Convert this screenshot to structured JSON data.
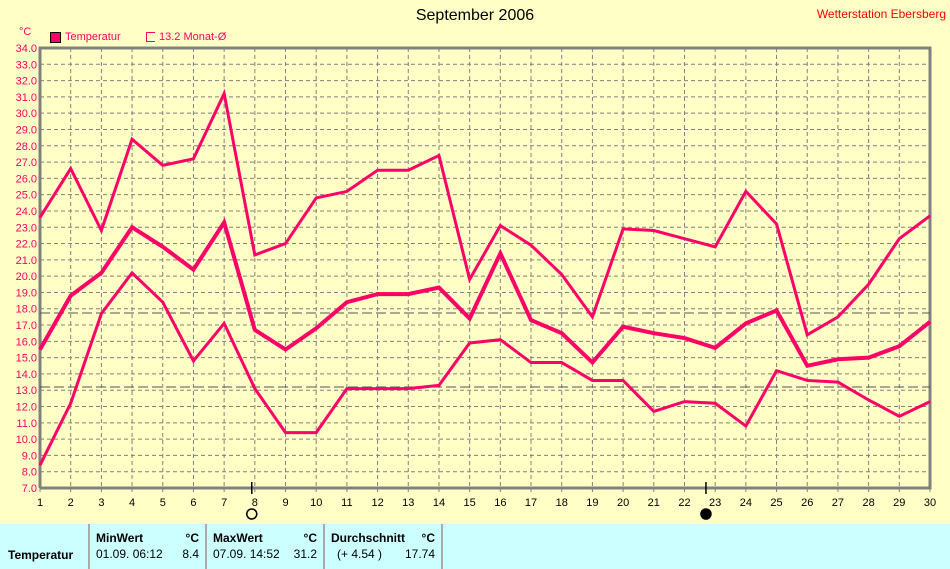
{
  "title": "September 2006",
  "station": "Wetterstation Ebersberg",
  "legend": {
    "series": "Temperatur",
    "mean": "13.2 Monat-Ø"
  },
  "chart_data": {
    "type": "line",
    "title": "September 2006",
    "ylabel": "°C",
    "ylim": [
      7,
      34
    ],
    "xlim": [
      1,
      30
    ],
    "x": [
      1,
      2,
      3,
      4,
      5,
      6,
      7,
      8,
      9,
      10,
      11,
      12,
      13,
      14,
      15,
      16,
      17,
      18,
      19,
      20,
      21,
      22,
      23,
      24,
      25,
      26,
      27,
      28,
      29,
      30
    ],
    "yticks": [
      "7.0",
      "8.0",
      "9.0",
      "10.0",
      "11.0",
      "12.0",
      "13.0",
      "14.0",
      "15.0",
      "16.0",
      "17.0",
      "18.0",
      "19.0",
      "20.0",
      "21.0",
      "22.0",
      "23.0",
      "24.0",
      "25.0",
      "26.0",
      "27.0",
      "28.0",
      "29.0",
      "30.0",
      "31.0",
      "32.0",
      "33.0",
      "34.0"
    ],
    "series": [
      {
        "name": "Max",
        "values": [
          23.6,
          26.6,
          22.8,
          28.4,
          26.8,
          27.2,
          31.2,
          21.3,
          22.0,
          24.8,
          25.2,
          26.5,
          26.5,
          27.4,
          19.8,
          23.1,
          21.9,
          20.1,
          17.5,
          22.9,
          22.8,
          22.3,
          21.8,
          25.2,
          23.2,
          16.4,
          17.5,
          19.5,
          22.3,
          23.7
        ]
      },
      {
        "name": "Temperatur",
        "values": [
          15.5,
          18.8,
          20.2,
          23.0,
          21.8,
          20.4,
          23.3,
          16.7,
          15.5,
          16.8,
          18.4,
          18.9,
          18.9,
          19.3,
          17.4,
          21.4,
          17.3,
          16.5,
          14.7,
          16.9,
          16.5,
          16.2,
          15.6,
          17.1,
          17.9,
          14.5,
          14.9,
          15.0,
          15.7,
          17.2
        ]
      },
      {
        "name": "Min",
        "values": [
          8.4,
          12.2,
          17.7,
          20.2,
          18.4,
          14.8,
          17.1,
          13.1,
          10.4,
          10.4,
          13.1,
          13.1,
          13.1,
          13.3,
          15.9,
          16.1,
          14.7,
          14.7,
          13.6,
          13.6,
          11.7,
          12.3,
          12.2,
          10.8,
          14.2,
          13.6,
          13.5,
          12.4,
          11.4,
          12.3
        ]
      }
    ],
    "reference_lines": [
      {
        "name": "Durchschnitt",
        "value": 17.74
      },
      {
        "name": "Monat-Ø",
        "value": 13.2
      }
    ],
    "moon_phases": [
      {
        "day": 7.9,
        "phase": "full"
      },
      {
        "day": 22.7,
        "phase": "new"
      }
    ],
    "grid": true,
    "legend_position": "top-left",
    "colors": {
      "series": "#ff0066",
      "grid": "#808080"
    }
  },
  "table": {
    "row_label": "Temperatur",
    "min": {
      "header": "MinWert",
      "unit": "°C",
      "time": "01.09.  06:12",
      "value": "8.4"
    },
    "max": {
      "header": "MaxWert",
      "unit": "°C",
      "time": "07.09.  14:52",
      "value": "31.2"
    },
    "avg": {
      "header": "Durchschnitt",
      "unit": "°C",
      "delta": "(+ 4.54 )",
      "value": "17.74"
    }
  }
}
